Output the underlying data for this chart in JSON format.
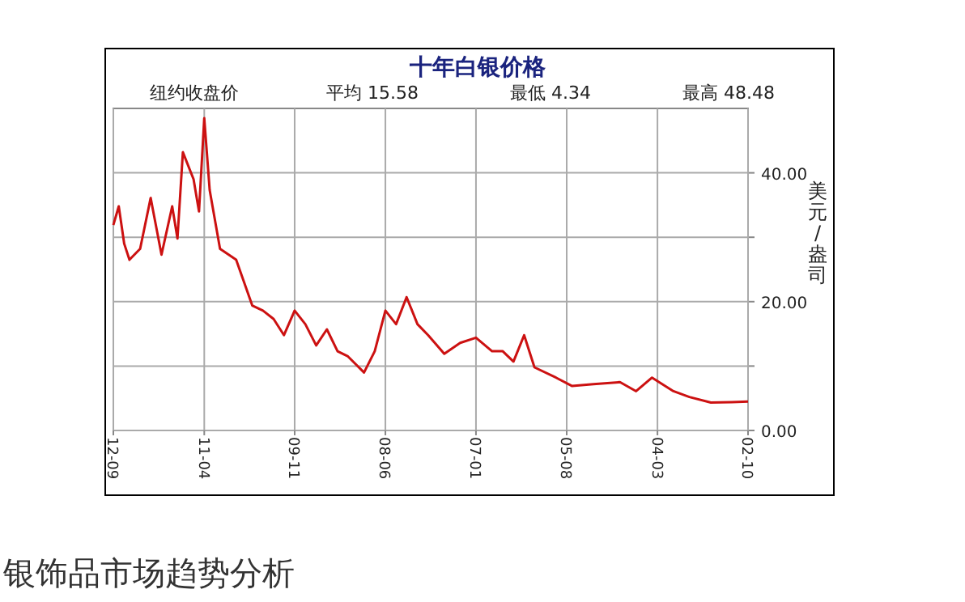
{
  "chart_data": {
    "type": "line",
    "title": "十年白银价格",
    "ylabel": "美元/盎司",
    "annotations": [
      "纽约收盘价",
      "平均 15.58",
      "最低 4.34",
      "最高 48.48",
      "银饰品市场趋势分析"
    ],
    "x": [
      "2002-10",
      "2003-01",
      "2003-05",
      "2003-09",
      "2003-12",
      "2004-04",
      "2004-07",
      "2004-10",
      "2005-03",
      "2005-07",
      "2005-10",
      "2006-02",
      "2006-04",
      "2006-06",
      "2006-08",
      "2006-10",
      "2007-01",
      "2007-04",
      "2007-07",
      "2007-10",
      "2007-12",
      "2008-02",
      "2008-04",
      "2008-06",
      "2008-08",
      "2008-10",
      "2009-01",
      "2009-03",
      "2009-05",
      "2009-07",
      "2009-09",
      "2009-11",
      "2010-01",
      "2010-03",
      "2010-05",
      "2010-07",
      "2010-10",
      "2011-01",
      "2011-03",
      "2011-04",
      "2011-05",
      "2011-06",
      "2011-08",
      "2011-09",
      "2011-10",
      "2011-12",
      "2012-02",
      "2012-04",
      "2012-06",
      "2012-07",
      "2012-08",
      "2012-09"
    ],
    "values": [
      4.5,
      4.4,
      4.34,
      5.2,
      6.1,
      8.2,
      6.1,
      7.5,
      7.2,
      6.9,
      8.2,
      9.8,
      14.8,
      10.7,
      12.3,
      12.3,
      14.4,
      13.6,
      11.9,
      14.8,
      16.5,
      20.7,
      16.5,
      18.6,
      12.3,
      9.0,
      11.5,
      12.3,
      15.7,
      13.2,
      16.5,
      18.6,
      14.8,
      17.3,
      18.6,
      19.4,
      26.5,
      28.2,
      37.3,
      48.48,
      34,
      39,
      43.2,
      29.8,
      34.8,
      27.3,
      36.1,
      28.2,
      26.5,
      29,
      34.8,
      31.9
    ],
    "color": "#cc1111",
    "xlim": [
      "2012-09",
      "2002-10"
    ],
    "xticks": [
      {
        "value": "2012-09",
        "label": "12-09"
      },
      {
        "value": "2011-04",
        "label": "11-04"
      },
      {
        "value": "2009-11",
        "label": "09-11"
      },
      {
        "value": "2008-06",
        "label": "08-06"
      },
      {
        "value": "2007-01",
        "label": "07-01"
      },
      {
        "value": "2005-08",
        "label": "05-08"
      },
      {
        "value": "2004-03",
        "label": "04-03"
      },
      {
        "value": "2002-10",
        "label": "02-10"
      }
    ],
    "ylim": [
      0,
      50
    ],
    "yticks": [
      {
        "value": 0,
        "label": "0.00"
      },
      {
        "value": 10,
        "label": null
      },
      {
        "value": 20,
        "label": "20.00"
      },
      {
        "value": 30,
        "label": null
      },
      {
        "value": 40,
        "label": "40.00"
      }
    ],
    "grid": true
  }
}
